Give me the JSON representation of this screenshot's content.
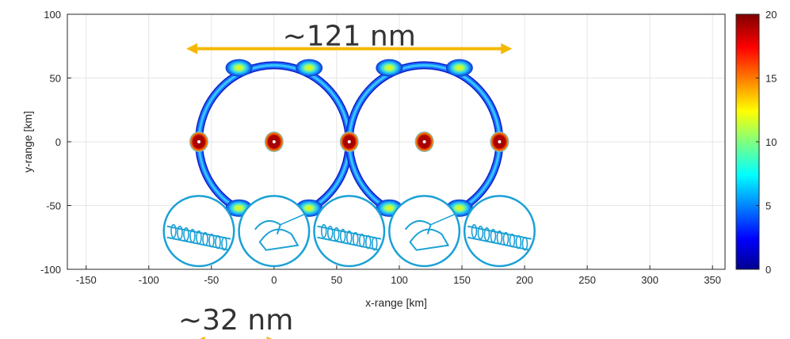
{
  "chart_data": {
    "type": "heatmap",
    "xlabel": "x-range [km]",
    "ylabel": "y-range [km]",
    "xlim": [
      -165,
      360
    ],
    "ylim": [
      -100,
      100
    ],
    "x_ticks": [
      -150,
      -100,
      -50,
      0,
      50,
      100,
      150,
      200,
      250,
      300,
      350
    ],
    "y_ticks": [
      -100,
      -50,
      0,
      50,
      100
    ],
    "grid": true,
    "colormap": "jet",
    "colorbar": {
      "range": [
        0,
        20
      ],
      "ticks": [
        0,
        5,
        10,
        15,
        20
      ],
      "placement": "right"
    },
    "rings": [
      {
        "center_x": 0,
        "center_y": 0,
        "radius": 60
      },
      {
        "center_x": 120,
        "center_y": 0,
        "radius": 60
      }
    ],
    "hotspots": [
      {
        "x": -60,
        "y": 0,
        "intensity": 20
      },
      {
        "x": 0,
        "y": 0,
        "intensity": 20
      },
      {
        "x": 60,
        "y": 0,
        "intensity": 20
      },
      {
        "x": 120,
        "y": 0,
        "intensity": 20
      },
      {
        "x": 180,
        "y": 0,
        "intensity": 20
      },
      {
        "x": -28,
        "y": 58,
        "intensity": 12
      },
      {
        "x": 28,
        "y": 58,
        "intensity": 12
      },
      {
        "x": 92,
        "y": 58,
        "intensity": 12
      },
      {
        "x": 148,
        "y": 58,
        "intensity": 12
      },
      {
        "x": -28,
        "y": -52,
        "intensity": 12
      },
      {
        "x": 28,
        "y": -52,
        "intensity": 12
      },
      {
        "x": 92,
        "y": -52,
        "intensity": 12
      },
      {
        "x": 148,
        "y": -52,
        "intensity": 12
      }
    ],
    "annotations": [
      {
        "text": "~121 nm",
        "arrow_from_x": -70,
        "arrow_to_x": 190,
        "arrow_y": 73
      },
      {
        "text": "~32 nm",
        "arrow_from_x": -64,
        "arrow_to_x": 3,
        "arrow_y": -157
      }
    ],
    "arrow_color": "#f5b800"
  },
  "overlay": {
    "line_color": "#1ba1d6",
    "medallions": [
      {
        "kind": "filament",
        "x": -60
      },
      {
        "kind": "myosin-head",
        "x": 0
      },
      {
        "kind": "filament",
        "x": 60
      },
      {
        "kind": "myosin-head",
        "x": 120
      },
      {
        "kind": "filament",
        "x": 180
      }
    ],
    "medallion_y": -70,
    "medallion_radius": 28
  }
}
